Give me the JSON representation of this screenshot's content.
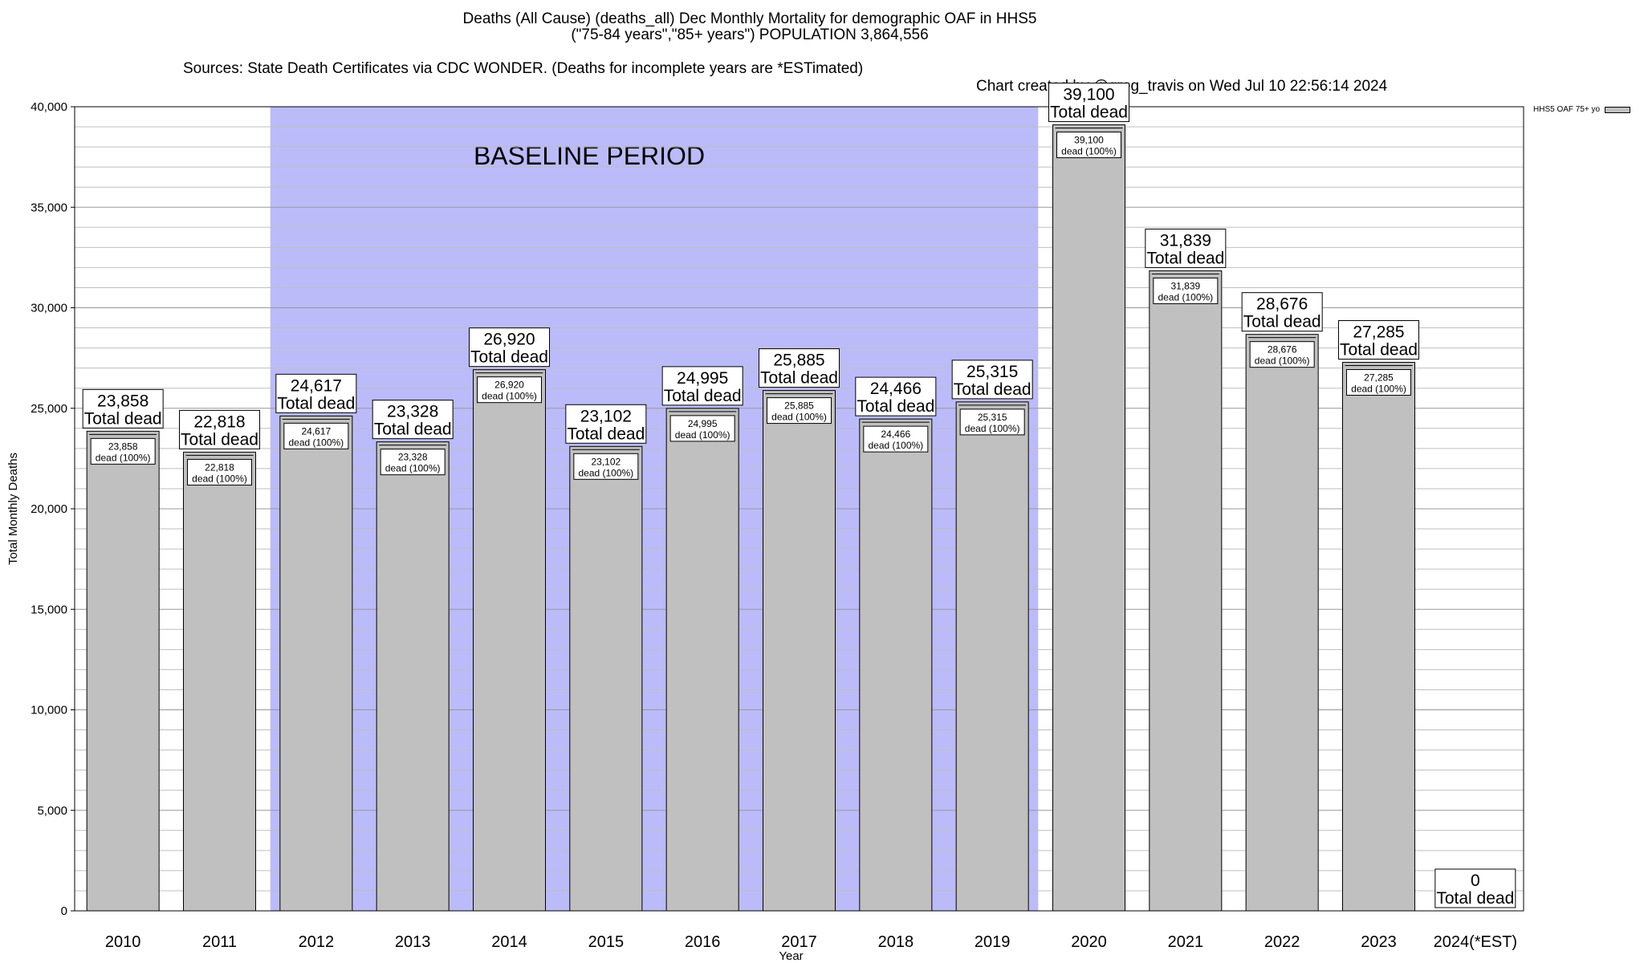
{
  "title_line1": "Deaths (All Cause) (deaths_all) Dec Monthly Mortality for demographic OAF in HHS5",
  "title_line2": "(\"75-84 years\",\"85+ years\") POPULATION 3,864,556",
  "sources": "Sources: State Death Certificates via CDC WONDER. (Deaths for incomplete years are *ESTimated)",
  "credit": "Chart created by @greg_travis on Wed Jul 10 22:56:14 2024",
  "baseline_label": "BASELINE PERIOD",
  "legend_label": "HHS5 OAF 75+ yo",
  "colors": {
    "bar": "#c0c0c0",
    "baseline": "#bbbbfa",
    "grid": "#bfbfbf"
  },
  "chart_data": {
    "type": "bar",
    "xlabel": "Year",
    "ylabel": "Total Monthly Deaths",
    "ylim": [
      0,
      40000
    ],
    "yticks": [
      0,
      5000,
      10000,
      15000,
      20000,
      25000,
      30000,
      35000,
      40000
    ],
    "ytick_labels": [
      "0",
      "5,000",
      "10,000",
      "15,000",
      "20,000",
      "25,000",
      "30,000",
      "35,000",
      "40,000"
    ],
    "grid": true,
    "legend_position": "top-right",
    "categories": [
      "2010",
      "2011",
      "2012",
      "2013",
      "2014",
      "2015",
      "2016",
      "2017",
      "2018",
      "2019",
      "2020",
      "2021",
      "2022",
      "2023",
      "2024(*EST)"
    ],
    "series": [
      {
        "name": "HHS5 OAF 75+ yo",
        "values": [
          23858,
          22818,
          24617,
          23328,
          26920,
          23102,
          24995,
          25885,
          24466,
          25315,
          39100,
          31839,
          28676,
          27285,
          0
        ]
      }
    ],
    "value_labels": [
      "23,858",
      "22,818",
      "24,617",
      "23,328",
      "26,920",
      "23,102",
      "24,995",
      "25,885",
      "24,466",
      "25,315",
      "39,100",
      "31,839",
      "28,676",
      "27,285",
      "0"
    ],
    "top_label_suffix": "Total dead",
    "inner_label_suffix": "dead (100%)",
    "baseline_period": [
      "2012",
      "2019"
    ]
  }
}
